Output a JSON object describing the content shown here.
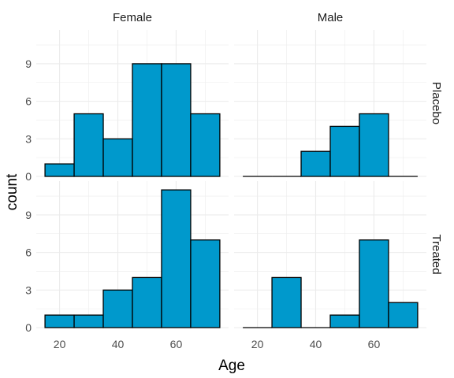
{
  "chart_data": {
    "type": "bar",
    "subtype": "faceted-histogram",
    "xlabel": "Age",
    "ylabel": "count",
    "x_ticks": [
      20,
      40,
      60
    ],
    "y_ticks": [
      0,
      3,
      6,
      9
    ],
    "xlim": [
      12,
      78
    ],
    "ylim": [
      0,
      11.7
    ],
    "bin_edges": [
      15,
      25,
      35,
      45,
      55,
      65,
      75
    ],
    "column_facets": [
      "Female",
      "Male"
    ],
    "row_facets": [
      "Placebo",
      "Treated"
    ],
    "panels": [
      {
        "column": "Female",
        "row": "Placebo",
        "counts": [
          1,
          5,
          3,
          9,
          9,
          5
        ]
      },
      {
        "column": "Male",
        "row": "Placebo",
        "counts": [
          0,
          0,
          2,
          4,
          5,
          0
        ]
      },
      {
        "column": "Female",
        "row": "Treated",
        "counts": [
          1,
          1,
          3,
          4,
          11,
          7
        ]
      },
      {
        "column": "Male",
        "row": "Treated",
        "counts": [
          0,
          4,
          0,
          1,
          7,
          2
        ]
      }
    ],
    "fill_color": "#0099cc",
    "edge_color": "#000000",
    "grid": true,
    "grid_color": "#ebebeb",
    "theme": "minimal"
  }
}
